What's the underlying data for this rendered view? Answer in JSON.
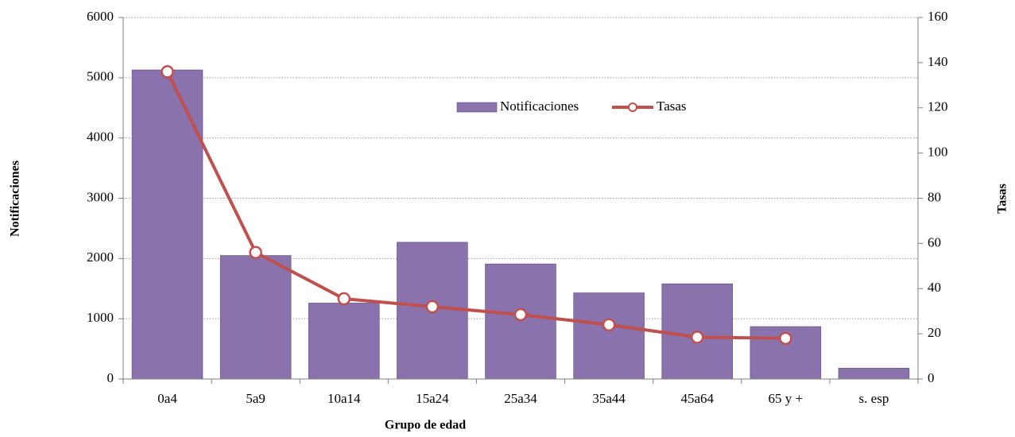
{
  "chart_data": {
    "type": "bar",
    "xlabel": "Grupo de edad",
    "ylabel": "Notificaciones",
    "y2label": "Tasas",
    "categories": [
      "0a4",
      "5a9",
      "10a14",
      "15a24",
      "25a34",
      "35a44",
      "45a64",
      "65 y +",
      "s. esp"
    ],
    "series": [
      {
        "name": "Notificaciones",
        "color": "#8a72ac",
        "values": [
          5130,
          2050,
          1260,
          2270,
          1910,
          1430,
          1580,
          870,
          180
        ]
      },
      {
        "name": "Tasas",
        "type": "line",
        "axis": "y2",
        "color": "#c0504d",
        "values": [
          136,
          56,
          35.5,
          32,
          28.5,
          24,
          18.5,
          18,
          null
        ]
      }
    ],
    "ylim": [
      0,
      6000
    ],
    "yticks": [
      0,
      1000,
      2000,
      3000,
      4000,
      5000,
      6000
    ],
    "y2lim": [
      0,
      160
    ],
    "y2ticks": [
      0,
      20,
      40,
      60,
      80,
      100,
      120,
      140,
      160
    ],
    "grid": true,
    "legend": "top"
  }
}
